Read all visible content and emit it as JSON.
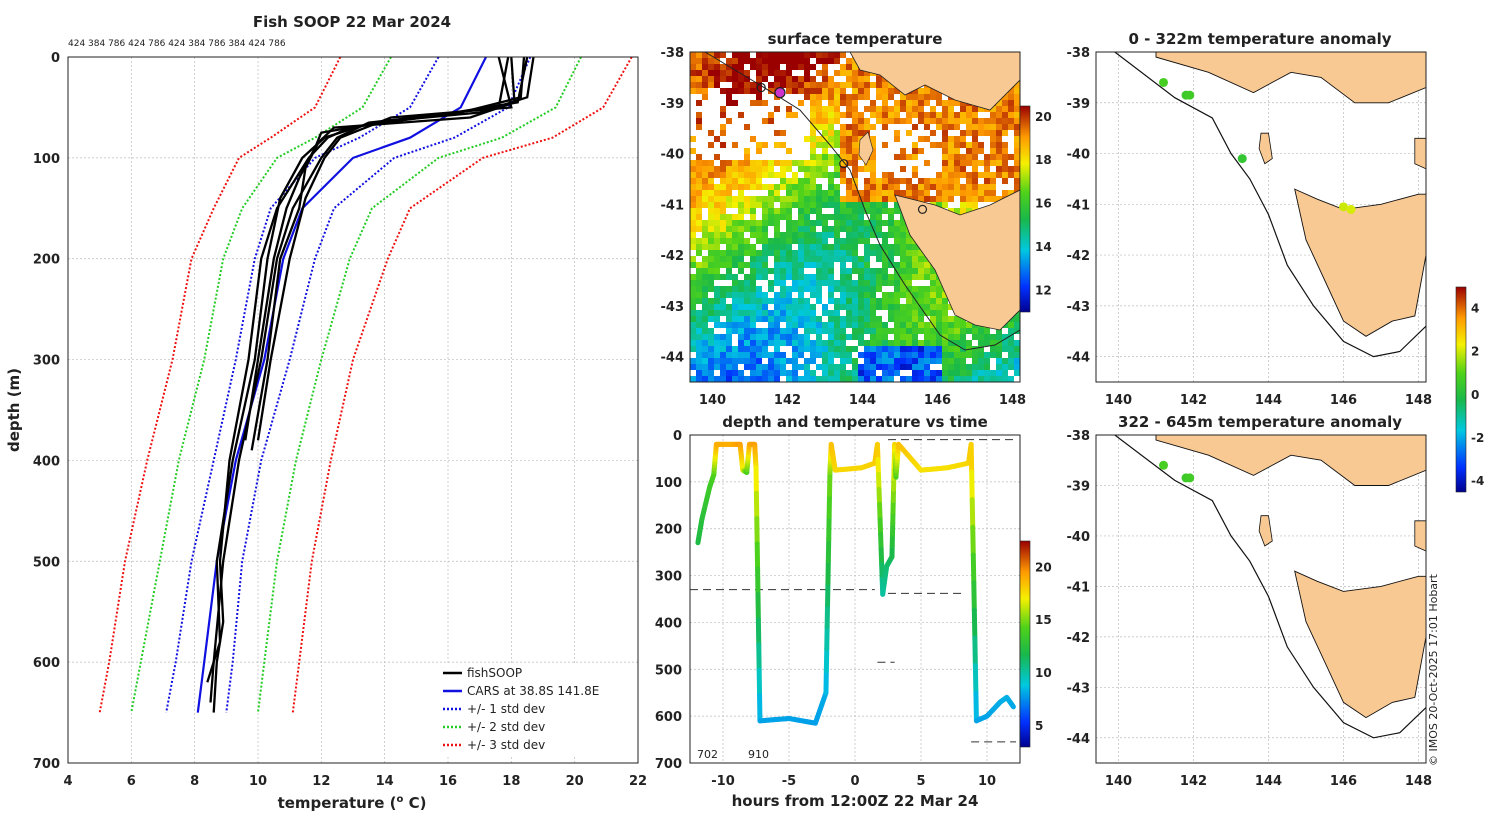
{
  "chart_data": [
    {
      "type": "line",
      "title": "Fish SOOP 22 Mar 2024",
      "subtitle": "424 384 786 424 786 424 384 786 384 424 786",
      "xlabel": "temperature (",
      "xlabel_sup": "o",
      "xlabel_end": " C)",
      "ylabel": "depth (m)",
      "xlim": [
        4,
        22
      ],
      "ylim": [
        0,
        700
      ],
      "y_reversed": true,
      "x_ticks": [
        "4",
        "6",
        "8",
        "10",
        "12",
        "14",
        "16",
        "18",
        "20",
        "22"
      ],
      "y_ticks": [
        "0",
        "100",
        "200",
        "300",
        "400",
        "500",
        "600",
        "700"
      ],
      "grid": true,
      "legend_position": "bottom-right",
      "legend": [
        "fishSOOP",
        "CARS at 38.8S 141.8E",
        "+/- 1 std dev",
        "+/- 2 std dev",
        "+/- 3 std dev"
      ],
      "depth": [
        0,
        50,
        80,
        100,
        150,
        200,
        300,
        400,
        500,
        600,
        650
      ],
      "series": [
        {
          "name": "CARS at 38.8S 141.8E",
          "color": "#1010e0",
          "values": [
            17.2,
            16.4,
            14.8,
            13.0,
            11.4,
            10.8,
            10.2,
            9.3,
            8.7,
            8.3,
            8.1
          ]
        },
        {
          "name": "+/- 1 std dev (upper)",
          "color": "#1010e0",
          "values": [
            18.6,
            17.9,
            16.2,
            14.3,
            12.4,
            11.8,
            11.0,
            10.1,
            9.5,
            9.2,
            9.0
          ]
        },
        {
          "name": "+/- 1 std dev (lower)",
          "color": "#1010e0",
          "values": [
            15.7,
            14.8,
            13.2,
            11.8,
            10.4,
            9.9,
            9.3,
            8.6,
            7.9,
            7.4,
            7.1
          ]
        },
        {
          "name": "+/- 2 std dev (upper)",
          "color": "#22cc22",
          "values": [
            20.2,
            19.4,
            17.7,
            15.7,
            13.6,
            12.9,
            12.0,
            11.2,
            10.6,
            10.2,
            10.0
          ]
        },
        {
          "name": "+/- 2 std dev (lower)",
          "color": "#22cc22",
          "values": [
            14.2,
            13.3,
            11.8,
            10.6,
            9.5,
            8.9,
            8.3,
            7.5,
            6.9,
            6.3,
            6.0
          ]
        },
        {
          "name": "+/- 3 std dev (upper)",
          "color": "#ee1111",
          "values": [
            21.8,
            20.9,
            19.3,
            17.1,
            14.8,
            14.1,
            13.0,
            12.3,
            11.7,
            11.3,
            11.1
          ]
        },
        {
          "name": "+/- 3 std dev (lower)",
          "color": "#ee1111",
          "values": [
            12.6,
            11.8,
            10.4,
            9.4,
            8.6,
            7.9,
            7.3,
            6.5,
            5.8,
            5.3,
            5.0
          ]
        }
      ],
      "fishsoop_profiles": [
        {
          "depth": [
            0,
            40,
            55,
            65,
            80,
            100,
            150,
            200,
            300,
            400,
            500,
            600,
            640
          ],
          "values": [
            18.4,
            18.3,
            16.4,
            13.5,
            12.5,
            12.0,
            11.1,
            10.6,
            10.1,
            9.4,
            8.9,
            8.6,
            8.5
          ]
        },
        {
          "depth": [
            0,
            45,
            60,
            70,
            80,
            100,
            150,
            200,
            300,
            400,
            500,
            560,
            600,
            650
          ],
          "values": [
            18.5,
            18.2,
            15.2,
            12.9,
            12.2,
            11.6,
            10.6,
            10.1,
            9.7,
            9.1,
            8.8,
            8.9,
            8.7,
            8.6
          ]
        },
        {
          "depth": [
            0,
            50,
            60,
            75,
            90,
            120,
            150,
            200,
            300,
            380
          ],
          "values": [
            17.9,
            17.6,
            14.8,
            12.0,
            11.8,
            11.3,
            10.9,
            10.5,
            10.0,
            9.6
          ]
        },
        {
          "depth": [
            0,
            45,
            60,
            70,
            85,
            110,
            150,
            200,
            300,
            390
          ],
          "values": [
            18.0,
            18.1,
            16.7,
            12.4,
            11.9,
            11.5,
            11.3,
            10.7,
            10.3,
            9.8
          ]
        },
        {
          "depth": [
            0,
            40,
            55,
            65,
            80,
            100,
            140,
            200,
            300,
            400,
            500,
            580,
            620
          ],
          "values": [
            18.7,
            18.5,
            17.0,
            13.6,
            12.1,
            11.4,
            10.7,
            10.3,
            9.9,
            9.2,
            8.7,
            8.8,
            8.4
          ]
        },
        {
          "depth": [
            0,
            50,
            60,
            80,
            100,
            140,
            200,
            300,
            380
          ],
          "values": [
            17.6,
            18.0,
            14.2,
            12.6,
            12.1,
            11.5,
            11.0,
            10.4,
            10.0
          ]
        }
      ]
    },
    {
      "type": "heatmap",
      "title": "surface temperature",
      "x_ticks": [
        "140",
        "142",
        "144",
        "146",
        "148"
      ],
      "y_ticks": [
        "-38",
        "-39",
        "-40",
        "-41",
        "-42",
        "-43",
        "-44"
      ],
      "xlim": [
        139.4,
        148.2
      ],
      "ylim": [
        -44.5,
        -38
      ],
      "colorbar_ticks": [
        "12",
        "14",
        "16",
        "18",
        "20"
      ],
      "colorbar_range": [
        11,
        20.5
      ],
      "markers_lon": [
        141.3,
        141.8,
        143.5,
        145.6
      ],
      "markers_lat": [
        -38.7,
        -38.8,
        -40.2,
        -41.1
      ]
    },
    {
      "type": "scatter",
      "title": "depth and temperature vs time",
      "xlabel": "hours from 12:00Z 22 Mar 24",
      "x_ticks": [
        "-10",
        "-5",
        "0",
        "5",
        "10"
      ],
      "y_ticks": [
        "0",
        "100",
        "200",
        "300",
        "400",
        "500",
        "600",
        "700"
      ],
      "xlim": [
        -12.5,
        12.5
      ],
      "ylim": [
        0,
        700
      ],
      "y_reversed": true,
      "annotations": [
        "702",
        "910"
      ],
      "colorbar_ticks": [
        "5",
        "10",
        "15",
        "20"
      ],
      "colorbar_range": [
        3,
        22.5
      ],
      "time": [
        -11.9,
        -11.6,
        -11.0,
        -10.7,
        -10.5,
        -10.0,
        -9.3,
        -8.7,
        -8.5,
        -8.2,
        -8.0,
        -7.6,
        -7.5,
        -7.2,
        -5.0,
        -3.0,
        -2.2,
        -1.9,
        -1.8,
        -1.5,
        0.5,
        1.5,
        1.7,
        2.1,
        2.4,
        2.8,
        3.0,
        3.1,
        3.3,
        5.0,
        7.0,
        8.6,
        8.8,
        9.2,
        10.0,
        11.0,
        11.5,
        12.0
      ],
      "depths": [
        230,
        180,
        110,
        85,
        20,
        20,
        20,
        20,
        75,
        80,
        20,
        20,
        70,
        610,
        605,
        615,
        550,
        80,
        20,
        75,
        70,
        60,
        20,
        340,
        280,
        260,
        20,
        90,
        20,
        75,
        70,
        60,
        20,
        610,
        600,
        570,
        560,
        580
      ],
      "temps": [
        12.0,
        12.5,
        13.5,
        14.0,
        19.0,
        19.0,
        19.0,
        19.5,
        17.0,
        14.0,
        19.0,
        19.5,
        17.5,
        8.0,
        8.0,
        7.9,
        8.2,
        15.0,
        18.5,
        17.8,
        17.8,
        18.0,
        18.5,
        10.0,
        11.0,
        11.5,
        18.0,
        14.0,
        18.5,
        17.5,
        17.5,
        17.8,
        18.5,
        8.0,
        8.0,
        8.2,
        8.3,
        8.1
      ],
      "ref_lines_x": [
        [
          -12.5,
          1.5
        ],
        [
          2.5,
          8.4
        ],
        [
          1.7,
          3.0
        ],
        [
          8.8,
          12.2
        ],
        [
          2.5,
          12.2
        ]
      ],
      "ref_lines_y": [
        330,
        338,
        485,
        655,
        10
      ]
    },
    {
      "type": "scatter",
      "title": "0 - 322m temperature anomaly",
      "x_ticks": [
        "140",
        "142",
        "144",
        "146",
        "148"
      ],
      "y_ticks": [
        "-38",
        "-39",
        "-40",
        "-41",
        "-42",
        "-43",
        "-44"
      ],
      "xlim": [
        139.4,
        148.2
      ],
      "ylim": [
        -44.5,
        -38
      ],
      "points_lon": [
        141.2,
        141.8,
        141.9,
        143.3,
        146.0,
        146.2
      ],
      "points_lat": [
        -38.6,
        -38.85,
        -38.85,
        -40.1,
        -41.05,
        -41.1
      ],
      "points_anomaly": [
        0.8,
        0.6,
        0.7,
        0.4,
        2.0,
        2.1
      ]
    },
    {
      "type": "scatter",
      "title": "322 - 645m temperature anomaly",
      "x_ticks": [
        "140",
        "142",
        "144",
        "146",
        "148"
      ],
      "y_ticks": [
        "-38",
        "-39",
        "-40",
        "-41",
        "-42",
        "-43",
        "-44"
      ],
      "xlim": [
        139.4,
        148.2
      ],
      "ylim": [
        -44.5,
        -38
      ],
      "colorbar_ticks": [
        "-4",
        "-2",
        "0",
        "2",
        "4"
      ],
      "colorbar_range": [
        -4.5,
        5
      ],
      "points_lon": [
        141.2,
        141.8,
        141.9
      ],
      "points_lat": [
        -38.6,
        -38.85,
        -38.85
      ],
      "points_anomaly": [
        0.8,
        0.6,
        0.7
      ]
    }
  ],
  "credit": "© IMOS 20-Oct-2025 17:01 Hobart",
  "land_color": "#f9c994"
}
